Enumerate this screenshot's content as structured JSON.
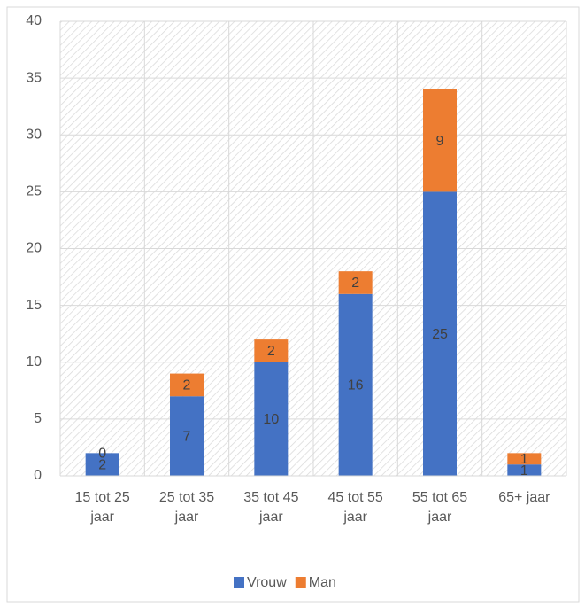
{
  "chart_data": {
    "type": "bar",
    "stacked": true,
    "categories": [
      "15 tot 25 jaar",
      "25 tot 35 jaar",
      "35 tot 45 jaar",
      "45 tot 55 jaar",
      "55 tot 65 jaar",
      "65+ jaar"
    ],
    "series": [
      {
        "name": "Vrouw",
        "color": "#4472c4",
        "values": [
          2,
          7,
          10,
          16,
          25,
          1
        ]
      },
      {
        "name": "Man",
        "color": "#ed7d31",
        "values": [
          0,
          2,
          2,
          2,
          9,
          1
        ]
      }
    ],
    "ylim": [
      0,
      40
    ],
    "yticks": [
      0,
      5,
      10,
      15,
      20,
      25,
      30,
      35,
      40
    ],
    "grid": true,
    "legend": "bottom"
  }
}
